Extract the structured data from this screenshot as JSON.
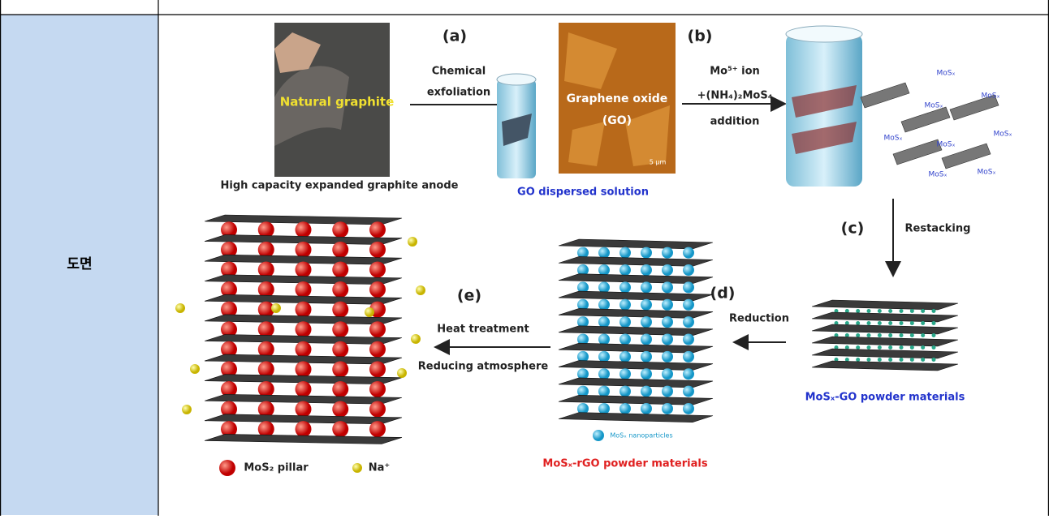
{
  "table": {
    "label": "도면"
  },
  "figure": {
    "steps": {
      "a": "(a)",
      "b": "(b)",
      "c": "(c)",
      "d": "(d)",
      "e": "(e)"
    },
    "arrows": {
      "a": [
        "Chemical",
        "exfoliation"
      ],
      "b": [
        "Mo⁵⁺ ion",
        "+(NH₄)₂MoS₄",
        "addition"
      ],
      "c": "Restacking",
      "d": "Reduction",
      "e": [
        "Heat treatment",
        "Reducing atmosphere"
      ]
    },
    "images": {
      "graphite": "Natural graphite",
      "go": [
        "Graphene oxide",
        "(GO)"
      ],
      "scale": "5 μm"
    },
    "captions": {
      "graphite": "High capacity expanded graphite anode",
      "solution": "GO dispersed solution",
      "mosx_go": "MoSₓ-GO powder materials",
      "mosx_rgo": "MoSₓ-rGO powder materials"
    },
    "flake_labels": [
      "MoSₓ",
      "MoSₓ",
      "MoSₓ",
      "MoSₓ",
      "MoSₓ",
      "MoSₓ",
      "MoSₓ",
      "MoSₓ"
    ],
    "legend": {
      "nanoparticles": "MoSₓ nanoparticles",
      "pillar": "MoS₂ pillar",
      "na": "Na⁺"
    }
  }
}
